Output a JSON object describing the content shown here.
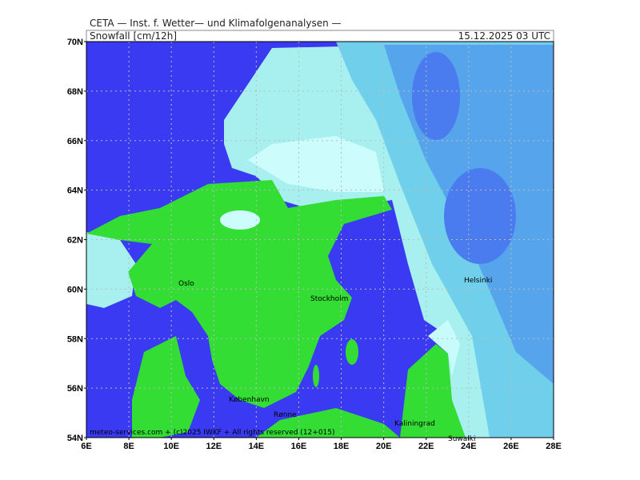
{
  "header": {
    "institute": "CETA — Inst. f. Wetter— und Klimafolgenanalysen —",
    "title": "Snowfall [cm/12h]",
    "valid_time": "15.12.2025 03 UTC"
  },
  "map": {
    "lat_labels": [
      "54N",
      "56N",
      "58N",
      "60N",
      "62N",
      "64N",
      "66N",
      "68N",
      "70N"
    ],
    "lon_labels": [
      "6E",
      "8E",
      "10E",
      "12E",
      "14E",
      "16E",
      "18E",
      "20E",
      "22E",
      "24E",
      "26E",
      "28E"
    ],
    "cities": [
      "Oslo",
      "Stockholm",
      "Helsinki",
      "København",
      "Rønne",
      "Kaliningrad",
      "Suwalki"
    ],
    "copyright": "meteo-services.com + (c)2025 IWKF + All rights reserved (12+015)"
  }
}
